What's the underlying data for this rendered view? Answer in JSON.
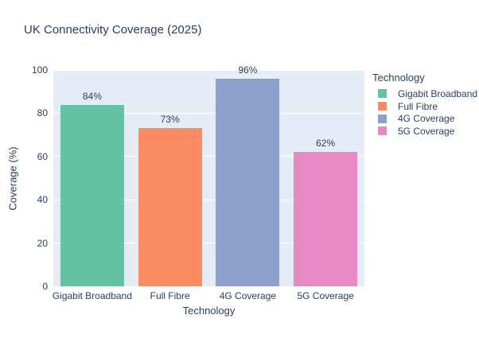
{
  "title": "UK Connectivity Coverage (2025)",
  "chart_data": {
    "type": "bar",
    "title": "UK Connectivity Coverage (2025)",
    "categories": [
      "Gigabit Broadband",
      "Full Fibre",
      "4G Coverage",
      "5G Coverage"
    ],
    "values": [
      84,
      73,
      96,
      62
    ],
    "bar_labels": [
      "84%",
      "73%",
      "96%",
      "62%"
    ],
    "bar_colors": [
      "#66c2a5",
      "#fc8d62",
      "#8da0cb",
      "#e78ac3"
    ],
    "xlabel": "Technology",
    "ylabel": "Coverage (%)",
    "ylim": [
      0,
      100
    ],
    "yticks": [
      0,
      20,
      40,
      60,
      80,
      100
    ],
    "grid": true,
    "legend": {
      "title": "Technology",
      "position": "right",
      "entries": [
        {
          "label": "Gigabit Broadband",
          "color": "#66c2a5"
        },
        {
          "label": "Full Fibre",
          "color": "#fc8d62"
        },
        {
          "label": "4G Coverage",
          "color": "#8da0cb"
        },
        {
          "label": "5G Coverage",
          "color": "#e78ac3"
        }
      ]
    }
  },
  "colors": {
    "text": "#2a3f5f",
    "plot_background": "#e5ecf6",
    "gridline": "#ffffff",
    "page_background": "#ffffff"
  }
}
